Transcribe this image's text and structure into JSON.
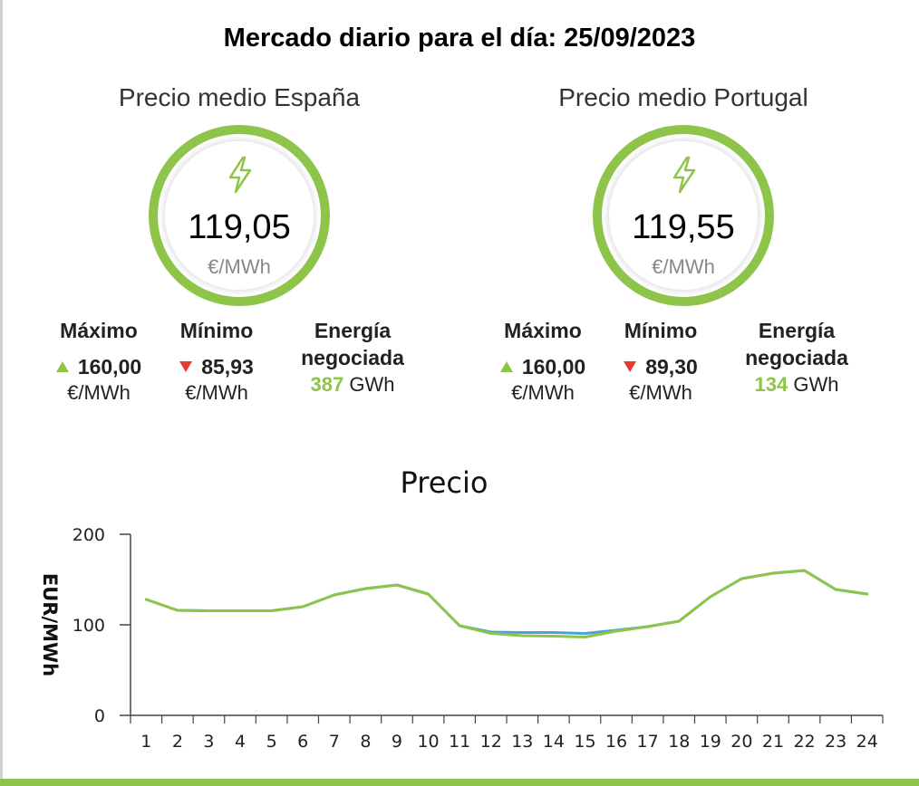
{
  "title": "Mercado diario para el día: 25/09/2023",
  "colors": {
    "accent": "#8dc449",
    "down": "#e53b2c",
    "portugal_line": "#4aa3d8"
  },
  "spain": {
    "title": "Precio medio España",
    "value": "119,05",
    "unit": "€/MWh",
    "max_label": "Máximo",
    "max_value": "160,00",
    "max_unit": "€/MWh",
    "min_label": "Mínimo",
    "min_value": "85,93",
    "min_unit": "€/MWh",
    "energy_label_1": "Energía",
    "energy_label_2": "negociada",
    "energy_value": "387",
    "energy_unit": "GWh"
  },
  "portugal": {
    "title": "Precio medio Portugal",
    "value": "119,55",
    "unit": "€/MWh",
    "max_label": "Máximo",
    "max_value": "160,00",
    "max_unit": "€/MWh",
    "min_label": "Mínimo",
    "min_value": "89,30",
    "min_unit": "€/MWh",
    "energy_label_1": "Energía",
    "energy_label_2": "negociada",
    "energy_value": "134",
    "energy_unit": "GWh"
  },
  "chart_data": {
    "type": "line",
    "title": "Precio",
    "xlabel": "",
    "ylabel": "EUR/MWh",
    "x": [
      1,
      2,
      3,
      4,
      5,
      6,
      7,
      8,
      9,
      10,
      11,
      12,
      13,
      14,
      15,
      16,
      17,
      18,
      19,
      20,
      21,
      22,
      23,
      24
    ],
    "ylim": [
      0,
      200
    ],
    "yticks": [
      0,
      100,
      200
    ],
    "grid": false,
    "legend": "none",
    "series": [
      {
        "color": "#4aa3d8",
        "values": [
          128,
          116,
          115.5,
          115.5,
          115.5,
          120,
          133,
          140,
          144,
          134,
          99,
          92,
          91.5,
          91.5,
          90.5,
          94,
          98,
          104,
          131,
          151,
          157,
          160,
          139,
          134
        ]
      },
      {
        "color": "#8dc449",
        "values": [
          128,
          116,
          115.5,
          115.5,
          115.5,
          120,
          133,
          140,
          144,
          134,
          99,
          90.5,
          88,
          87.5,
          86.5,
          93,
          98,
          104,
          131,
          151,
          157,
          160,
          139,
          134
        ]
      }
    ]
  }
}
